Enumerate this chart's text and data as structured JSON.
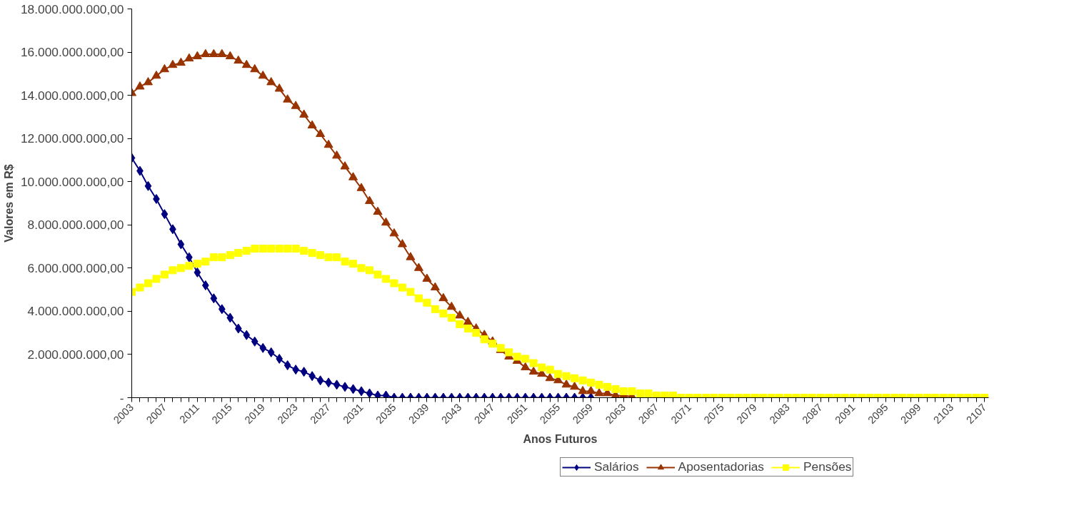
{
  "chart_data": {
    "type": "line",
    "xlabel": "Anos Futuros",
    "ylabel": "Valores em R$",
    "categories": [
      "2003",
      null,
      null,
      null,
      "2007",
      null,
      null,
      null,
      "2011",
      null,
      null,
      null,
      "2015",
      null,
      null,
      null,
      "2019",
      null,
      null,
      null,
      "2023",
      null,
      null,
      null,
      "2027",
      null,
      null,
      null,
      "2031",
      null,
      null,
      null,
      "2035",
      null,
      null,
      null,
      "2039",
      null,
      null,
      null,
      "2043",
      null,
      null,
      null,
      "2047",
      null,
      null,
      null,
      "2051",
      null,
      null,
      null,
      "2055",
      null,
      null,
      null,
      "2059",
      null,
      null,
      null,
      "2063",
      null,
      null,
      null,
      "2067",
      null,
      null,
      null,
      "2071",
      null,
      null,
      null,
      "2075",
      null,
      null,
      null,
      "2079",
      null,
      null,
      null,
      "2083",
      null,
      null,
      null,
      "2087",
      null,
      null,
      null,
      "2091",
      null,
      null,
      null,
      "2095",
      null,
      null,
      null,
      "2099",
      null,
      null,
      null,
      "2103",
      null,
      null,
      null,
      "2107"
    ],
    "ylim": [
      0,
      18000000000.0
    ],
    "yticks": [
      {
        "value": 0,
        "label": "-"
      },
      {
        "value": 2000000000.0,
        "label": "2.000.000.000,00"
      },
      {
        "value": 4000000000.0,
        "label": "4.000.000.000,00"
      },
      {
        "value": 6000000000.0,
        "label": "6.000.000.000,00"
      },
      {
        "value": 8000000000.0,
        "label": "8.000.000.000,00"
      },
      {
        "value": 10000000000.0,
        "label": "10.000.000.000,00"
      },
      {
        "value": 12000000000.0,
        "label": "12.000.000.000,00"
      },
      {
        "value": 14000000000.0,
        "label": "14.000.000.000,00"
      },
      {
        "value": 16000000000.0,
        "label": "16.000.000.000,00"
      },
      {
        "value": 18000000000.0,
        "label": "18.000.000.000,00"
      }
    ],
    "grid": false,
    "legend": "bottom",
    "series": [
      {
        "name": "Salários",
        "color": "#000080",
        "marker": "diamond",
        "values": [
          11100000000.0,
          10500000000.0,
          9800000000.0,
          9200000000.0,
          8500000000.0,
          7800000000.0,
          7100000000.0,
          6500000000.0,
          5800000000.0,
          5200000000.0,
          4600000000.0,
          4100000000.0,
          3700000000.0,
          3200000000.0,
          2900000000.0,
          2600000000.0,
          2300000000.0,
          2100000000.0,
          1800000000.0,
          1500000000.0,
          1300000000.0,
          1200000000.0,
          1000000000.0,
          800000000.0,
          700000000.0,
          600000000.0,
          500000000.0,
          400000000.0,
          300000000.0,
          200000000.0,
          100000000.0,
          100000000.0,
          0,
          0,
          0,
          0,
          0,
          0,
          0,
          0,
          0,
          0,
          0,
          0,
          0,
          0,
          0,
          0,
          0,
          0,
          0,
          0,
          0,
          0,
          0,
          0,
          0,
          null,
          null,
          null,
          null,
          null,
          null,
          null,
          null,
          null,
          null,
          null,
          null,
          null,
          null,
          null,
          null,
          null,
          null,
          null,
          null,
          null,
          null,
          null,
          null,
          null,
          null,
          null,
          null,
          null,
          null,
          null,
          null,
          null,
          null,
          null,
          null,
          null,
          null,
          null,
          null,
          null,
          null,
          null,
          null,
          null,
          null,
          null,
          null
        ]
      },
      {
        "name": "Aposentadorias",
        "color": "#993300",
        "marker": "triangle",
        "values": [
          14100000000.0,
          14400000000.0,
          14600000000.0,
          14900000000.0,
          15200000000.0,
          15400000000.0,
          15500000000.0,
          15700000000.0,
          15800000000.0,
          15900000000.0,
          15900000000.0,
          15900000000.0,
          15800000000.0,
          15600000000.0,
          15400000000.0,
          15200000000.0,
          14900000000.0,
          14600000000.0,
          14300000000.0,
          13800000000.0,
          13500000000.0,
          13100000000.0,
          12600000000.0,
          12200000000.0,
          11700000000.0,
          11200000000.0,
          10700000000.0,
          10200000000.0,
          9700000000.0,
          9100000000.0,
          8600000000.0,
          8100000000.0,
          7600000000.0,
          7100000000.0,
          6500000000.0,
          6000000000.0,
          5500000000.0,
          5100000000.0,
          4600000000.0,
          4200000000.0,
          3800000000.0,
          3500000000.0,
          3200000000.0,
          2900000000.0,
          2600000000.0,
          2200000000.0,
          1900000000.0,
          1700000000.0,
          1400000000.0,
          1200000000.0,
          1100000000.0,
          900000000.0,
          800000000.0,
          600000000.0,
          500000000.0,
          300000000.0,
          300000000.0,
          200000000.0,
          200000000.0,
          100000000.0,
          100000000.0,
          50000000.0,
          null,
          null,
          null,
          null,
          null,
          null,
          null,
          null,
          null,
          null,
          null,
          null,
          null,
          null,
          null,
          null,
          null,
          null,
          null,
          null,
          null,
          null,
          null,
          null,
          null,
          null,
          null,
          null,
          null,
          null,
          null,
          null,
          null,
          null,
          null,
          null,
          null,
          null,
          null,
          null,
          null,
          null,
          null
        ]
      },
      {
        "name": "Pensões",
        "color": "#ffff00",
        "marker": "square",
        "values": [
          4900000000.0,
          5100000000.0,
          5300000000.0,
          5500000000.0,
          5700000000.0,
          5900000000.0,
          6000000000.0,
          6100000000.0,
          6200000000.0,
          6300000000.0,
          6500000000.0,
          6500000000.0,
          6600000000.0,
          6700000000.0,
          6800000000.0,
          6900000000.0,
          6900000000.0,
          6900000000.0,
          6900000000.0,
          6900000000.0,
          6900000000.0,
          6800000000.0,
          6700000000.0,
          6600000000.0,
          6500000000.0,
          6500000000.0,
          6300000000.0,
          6200000000.0,
          6000000000.0,
          5900000000.0,
          5700000000.0,
          5500000000.0,
          5300000000.0,
          5100000000.0,
          4900000000.0,
          4600000000.0,
          4400000000.0,
          4100000000.0,
          3900000000.0,
          3700000000.0,
          3400000000.0,
          3200000000.0,
          3000000000.0,
          2700000000.0,
          2500000000.0,
          2300000000.0,
          2100000000.0,
          1900000000.0,
          1800000000.0,
          1600000000.0,
          1400000000.0,
          1300000000.0,
          1100000000.0,
          1000000000.0,
          900000000.0,
          800000000.0,
          700000000.0,
          600000000.0,
          500000000.0,
          400000000.0,
          300000000.0,
          300000000.0,
          200000000.0,
          200000000.0,
          100000000.0,
          100000000.0,
          100000000.0,
          0,
          0,
          0,
          0,
          0,
          0,
          0,
          0,
          0,
          0,
          0,
          0,
          0,
          0,
          0,
          0,
          0,
          0,
          0,
          0,
          0,
          0,
          0,
          0,
          0,
          0,
          0,
          0,
          0,
          0,
          0,
          0,
          0,
          0,
          0,
          0,
          0,
          0
        ]
      }
    ]
  }
}
